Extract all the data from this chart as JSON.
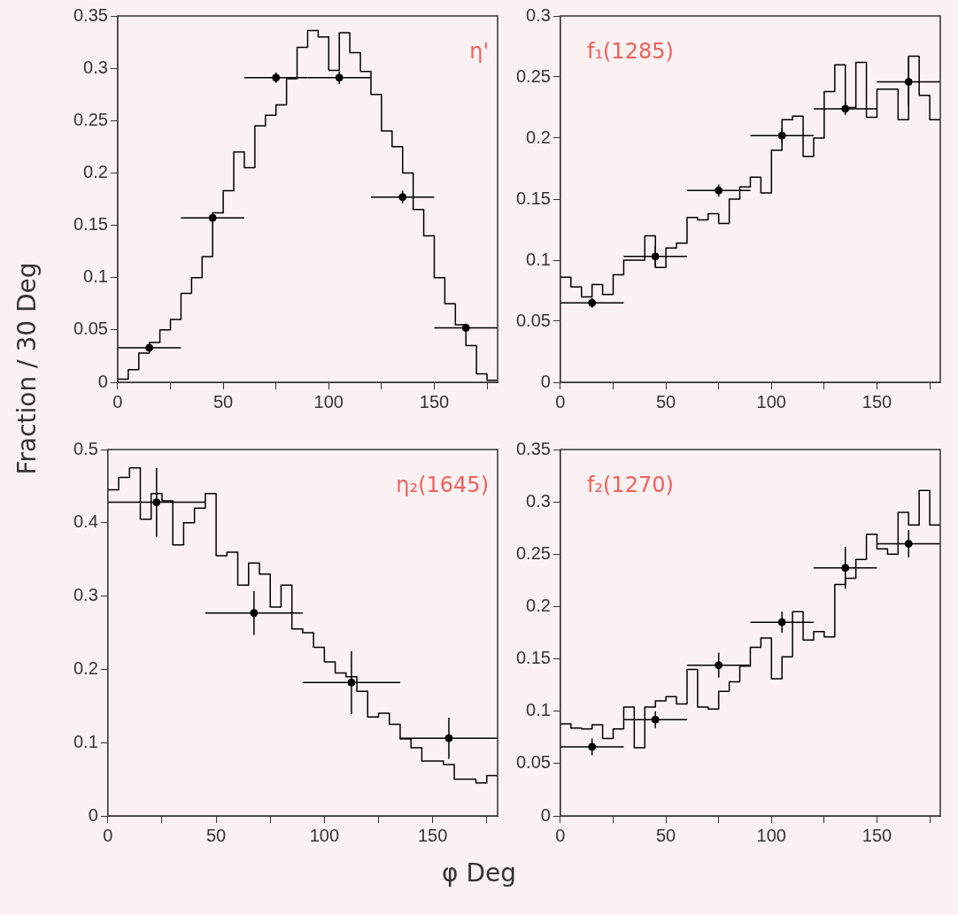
{
  "chart_data": [
    {
      "type": "histogram",
      "title": "η'",
      "ylabel": "Fraction / 30 Deg",
      "xlim": [
        0,
        180
      ],
      "xticks": [
        0,
        {
          "value": 25,
          "label": null
        },
        50,
        {
          "value": 75,
          "label": null
        },
        100,
        {
          "value": 125,
          "label": null
        },
        150,
        {
          "value": 175,
          "label": null
        }
      ],
      "ylim": [
        0,
        0.35
      ],
      "yticks": [
        0,
        0.05,
        0.1,
        0.15,
        0.2,
        0.25,
        0.3,
        0.35
      ],
      "marker": "circle",
      "series": [
        {
          "type": "histogram",
          "color": "#000000",
          "bins": [
            0,
            5,
            10,
            15,
            20,
            25,
            30,
            35,
            40,
            45,
            50,
            55,
            60,
            65,
            70,
            75,
            80,
            85,
            90,
            95,
            100,
            105,
            110,
            115,
            120,
            125,
            130,
            135,
            140,
            145,
            150,
            155,
            160,
            165,
            170,
            175,
            180
          ],
          "values": [
            0.003,
            0.012,
            0.028,
            0.038,
            0.05,
            0.06,
            0.085,
            0.1,
            0.12,
            0.162,
            0.183,
            0.22,
            0.205,
            0.245,
            0.255,
            0.265,
            0.29,
            0.32,
            0.336,
            0.33,
            0.298,
            0.334,
            0.315,
            0.297,
            0.275,
            0.24,
            0.225,
            0.2,
            0.165,
            0.14,
            0.1,
            0.075,
            0.055,
            0.035,
            0.008,
            0.002
          ]
        },
        {
          "type": "scatter",
          "color": "#000000",
          "x": [
            15,
            45,
            75,
            105,
            135,
            165
          ],
          "values": [
            0.033,
            0.157,
            0.291,
            0.291,
            0.177,
            0.052
          ],
          "errors": [
            0.004,
            0.005,
            0.005,
            0.006,
            0.006,
            0.004
          ],
          "xerrors": [
            15,
            15,
            15,
            15,
            15,
            15
          ]
        }
      ]
    },
    {
      "type": "histogram",
      "title": "f₁(1285)",
      "xlim": [
        0,
        180
      ],
      "xticks": [
        0,
        {
          "value": 25,
          "label": null
        },
        50,
        {
          "value": 75,
          "label": null
        },
        100,
        {
          "value": 125,
          "label": null
        },
        150,
        {
          "value": 175,
          "label": null
        }
      ],
      "ylim": [
        0,
        0.3
      ],
      "yticks": [
        0,
        0.05,
        0.1,
        0.15,
        0.2,
        0.25,
        0.3
      ],
      "marker": "circle",
      "series": [
        {
          "type": "histogram",
          "color": "#000000",
          "bins": [
            0,
            5,
            10,
            15,
            20,
            25,
            30,
            35,
            40,
            45,
            50,
            55,
            60,
            65,
            70,
            75,
            80,
            85,
            90,
            95,
            100,
            105,
            110,
            115,
            120,
            125,
            130,
            135,
            140,
            145,
            150,
            155,
            160,
            165,
            170,
            175,
            180
          ],
          "values": [
            0.086,
            0.078,
            0.07,
            0.08,
            0.072,
            0.088,
            0.1,
            0.1,
            0.12,
            0.094,
            0.11,
            0.114,
            0.135,
            0.133,
            0.138,
            0.13,
            0.15,
            0.16,
            0.168,
            0.155,
            0.19,
            0.215,
            0.218,
            0.185,
            0.2,
            0.238,
            0.26,
            0.225,
            0.262,
            0.217,
            0.24,
            0.24,
            0.215,
            0.267,
            0.235,
            0.215
          ]
        },
        {
          "type": "scatter",
          "color": "#000000",
          "x": [
            15,
            45,
            75,
            105,
            135,
            165
          ],
          "values": [
            0.065,
            0.103,
            0.157,
            0.202,
            0.224,
            0.246
          ],
          "errors": [
            0.004,
            0.008,
            0.005,
            0.006,
            0.005,
            0.02
          ],
          "xerrors": [
            15,
            15,
            15,
            15,
            15,
            15
          ]
        }
      ]
    },
    {
      "type": "histogram",
      "title": "η₂(1645)",
      "xlabel": "φ Deg",
      "xlim": [
        0,
        180
      ],
      "xticks": [
        0,
        {
          "value": 25,
          "label": null
        },
        50,
        {
          "value": 75,
          "label": null
        },
        100,
        {
          "value": 125,
          "label": null
        },
        150,
        {
          "value": 175,
          "label": null
        }
      ],
      "ylim": [
        0,
        0.5
      ],
      "yticks": [
        0,
        0.1,
        0.2,
        0.3,
        0.4,
        0.5
      ],
      "marker": "circle",
      "series": [
        {
          "type": "histogram",
          "color": "#000000",
          "bins": [
            0,
            5,
            10,
            15,
            20,
            25,
            30,
            35,
            40,
            45,
            50,
            55,
            60,
            65,
            70,
            75,
            80,
            85,
            90,
            95,
            100,
            105,
            110,
            115,
            120,
            125,
            130,
            135,
            140,
            145,
            150,
            155,
            160,
            165,
            170,
            175,
            180
          ],
          "values": [
            0.445,
            0.462,
            0.475,
            0.405,
            0.44,
            0.43,
            0.37,
            0.4,
            0.42,
            0.44,
            0.355,
            0.36,
            0.315,
            0.345,
            0.33,
            0.285,
            0.315,
            0.255,
            0.25,
            0.23,
            0.21,
            0.195,
            0.19,
            0.17,
            0.135,
            0.14,
            0.125,
            0.105,
            0.093,
            0.075,
            0.075,
            0.07,
            0.05,
            0.05,
            0.045,
            0.055
          ]
        },
        {
          "type": "scatter",
          "color": "#000000",
          "x": [
            22.5,
            67.5,
            112.5,
            157.5
          ],
          "values": [
            0.428,
            0.277,
            0.182,
            0.106
          ],
          "errors": [
            0.047,
            0.03,
            0.043,
            0.028
          ],
          "xerrors": [
            22.5,
            22.5,
            22.5,
            22.5
          ]
        }
      ]
    },
    {
      "type": "histogram",
      "title": "f₂(1270)",
      "xlim": [
        0,
        180
      ],
      "xticks": [
        0,
        {
          "value": 25,
          "label": null
        },
        50,
        {
          "value": 75,
          "label": null
        },
        100,
        {
          "value": 125,
          "label": null
        },
        150,
        {
          "value": 175,
          "label": null
        }
      ],
      "ylim": [
        0,
        0.35
      ],
      "yticks": [
        0,
        0.05,
        0.1,
        0.15,
        0.2,
        0.25,
        0.3,
        0.35
      ],
      "marker": "circle",
      "series": [
        {
          "type": "histogram",
          "color": "#000000",
          "bins": [
            0,
            5,
            10,
            15,
            20,
            25,
            30,
            35,
            40,
            45,
            50,
            55,
            60,
            65,
            70,
            75,
            80,
            85,
            90,
            95,
            100,
            105,
            110,
            115,
            120,
            125,
            130,
            135,
            140,
            145,
            150,
            155,
            160,
            165,
            170,
            175,
            180
          ],
          "values": [
            0.088,
            0.084,
            0.083,
            0.087,
            0.074,
            0.083,
            0.104,
            0.065,
            0.104,
            0.11,
            0.114,
            0.107,
            0.14,
            0.104,
            0.102,
            0.119,
            0.128,
            0.143,
            0.161,
            0.17,
            0.131,
            0.152,
            0.195,
            0.168,
            0.176,
            0.171,
            0.221,
            0.227,
            0.245,
            0.269,
            0.255,
            0.25,
            0.29,
            0.278,
            0.311,
            0.278
          ]
        },
        {
          "type": "scatter",
          "color": "#000000",
          "x": [
            15,
            45,
            75,
            105,
            135,
            165
          ],
          "values": [
            0.066,
            0.092,
            0.144,
            0.185,
            0.237,
            0.26
          ],
          "errors": [
            0.008,
            0.008,
            0.012,
            0.01,
            0.02,
            0.013
          ],
          "xerrors": [
            15,
            15,
            15,
            15,
            15,
            15
          ]
        }
      ]
    }
  ]
}
